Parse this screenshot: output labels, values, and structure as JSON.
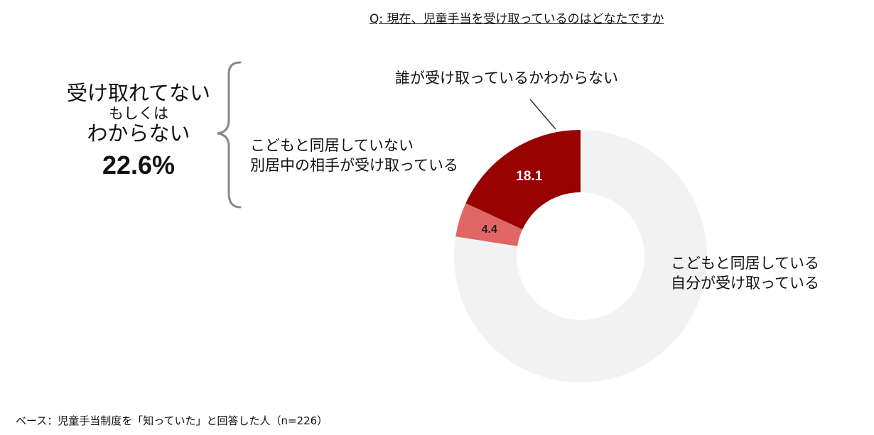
{
  "question": "Q: 現在、児童手当を受け取っているのはどなたですか",
  "summary": {
    "line1": "受け取れてない",
    "line2": "もしくは",
    "line3": "わからない",
    "percent": "22.6%"
  },
  "labels": {
    "self_line1": "こどもと同居している",
    "self_line2": "自分が受け取っている",
    "other_line1": "こどもと同居していない",
    "other_line2": "別居中の相手が受け取っている",
    "unknown": "誰が受け取っているかわからない"
  },
  "footer": "ベース：児童手当制度を「知っていた」と回答した人（n=226）",
  "chart_data": {
    "type": "pie",
    "donut": true,
    "slices": [
      {
        "label": "誰が受け取っているかわからない",
        "value": 4.4,
        "display": "4.4",
        "color": "#e06666"
      },
      {
        "label": "こどもと同居していない 別居中の相手が受け取っている",
        "value": 18.1,
        "display": "18.1",
        "color": "#990000"
      },
      {
        "label": "こどもと同居している 自分が受け取っている",
        "value": 77.4,
        "display": "",
        "color": "#f2f2f2"
      }
    ]
  }
}
